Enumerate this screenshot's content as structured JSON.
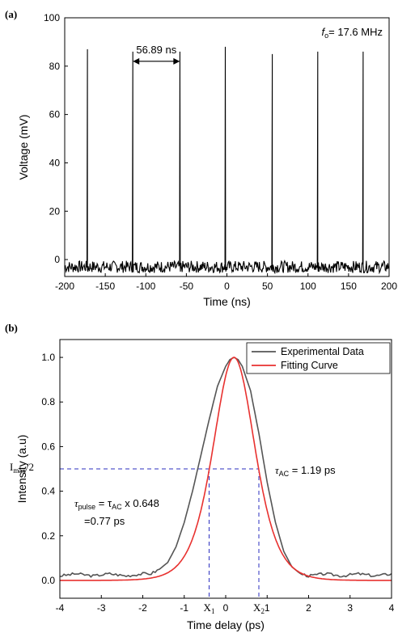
{
  "chart_data": [
    {
      "type": "line",
      "panel_label": "(a)",
      "xlabel": "Time (ns)",
      "ylabel": "Voltage (mV)",
      "xlim": [
        -200,
        200
      ],
      "ylim": [
        -7,
        100
      ],
      "xticks": [
        -200,
        -150,
        -100,
        -50,
        0,
        50,
        100,
        150,
        200
      ],
      "yticks": [
        0,
        20,
        40,
        60,
        80,
        100
      ],
      "pulse_train": {
        "peak_times_ns": [
          -172,
          -116,
          -58,
          -2,
          56,
          112,
          168
        ],
        "peak_values_mV": [
          87,
          86,
          86,
          88,
          85,
          86,
          86
        ],
        "baseline_mV": -3,
        "noise_amplitude_mV": 2.5,
        "pulse_width_ns": 1.0
      },
      "annotations": {
        "period_label": "56.89 ns",
        "period_arrow_x": [
          -116,
          -58
        ],
        "period_arrow_y": 82,
        "frequency_symbol": "f",
        "frequency_subscript": "o",
        "frequency_value": "= 17.6 MHz"
      },
      "colors": {
        "trace": "#000000"
      }
    },
    {
      "type": "line",
      "panel_label": "(b)",
      "xlabel": "Time delay (ps)",
      "ylabel": "Intensity (a.u)",
      "xlim": [
        -4,
        4
      ],
      "ylim": [
        -0.08,
        1.08
      ],
      "xticks": [
        -4,
        -3,
        -2,
        -1,
        0,
        1,
        2,
        3,
        4
      ],
      "yticks": [
        0.0,
        0.2,
        0.4,
        0.6,
        0.8,
        1.0
      ],
      "series": [
        {
          "name": "Experimental Data",
          "color": "#555555",
          "x": [
            -4.0,
            -3.6,
            -3.2,
            -2.8,
            -2.4,
            -2.0,
            -1.8,
            -1.6,
            -1.4,
            -1.2,
            -1.0,
            -0.8,
            -0.6,
            -0.4,
            -0.2,
            0.0,
            0.1,
            0.2,
            0.3,
            0.4,
            0.6,
            0.8,
            1.0,
            1.2,
            1.4,
            1.6,
            1.8,
            2.0,
            2.4,
            2.8,
            3.2,
            3.6,
            4.0
          ],
          "y": [
            0.02,
            0.03,
            0.02,
            0.03,
            0.02,
            0.03,
            0.03,
            0.05,
            0.08,
            0.15,
            0.26,
            0.4,
            0.56,
            0.72,
            0.87,
            0.96,
            0.99,
            1.0,
            0.99,
            0.96,
            0.85,
            0.66,
            0.44,
            0.26,
            0.13,
            0.06,
            0.03,
            0.02,
            0.03,
            0.02,
            0.03,
            0.02,
            0.03
          ]
        },
        {
          "name": "Fitting Curve",
          "color": "#e8312f",
          "model": "sech2",
          "center_ps": 0.2,
          "fwhm_ps": 1.19,
          "amplitude": 1.0
        }
      ],
      "annotations": {
        "half_max_label_main": "I",
        "half_max_label_sub": "max",
        "half_max_label_tail": "/2",
        "half_max_value": 0.5,
        "x1_position": -0.4,
        "x2_position": 0.8,
        "x1_main": "X",
        "x1_sub": "1",
        "x2_main": "X",
        "x2_sub": "2",
        "tau_ac_sym": "τ",
        "tau_ac_sub": "AC",
        "tau_ac_value": " = 1.19 ps",
        "tau_pulse_sym": "τ",
        "tau_pulse_sub": "pulse",
        "tau_pulse_mid": " =  τ",
        "tau_pulse_mid_sub": "AC",
        "tau_pulse_factor": " x 0.648",
        "tau_pulse_result": "=0.77 ps"
      },
      "legend_position": "top-right",
      "colors": {
        "guide": "#2b2fbf"
      }
    }
  ]
}
